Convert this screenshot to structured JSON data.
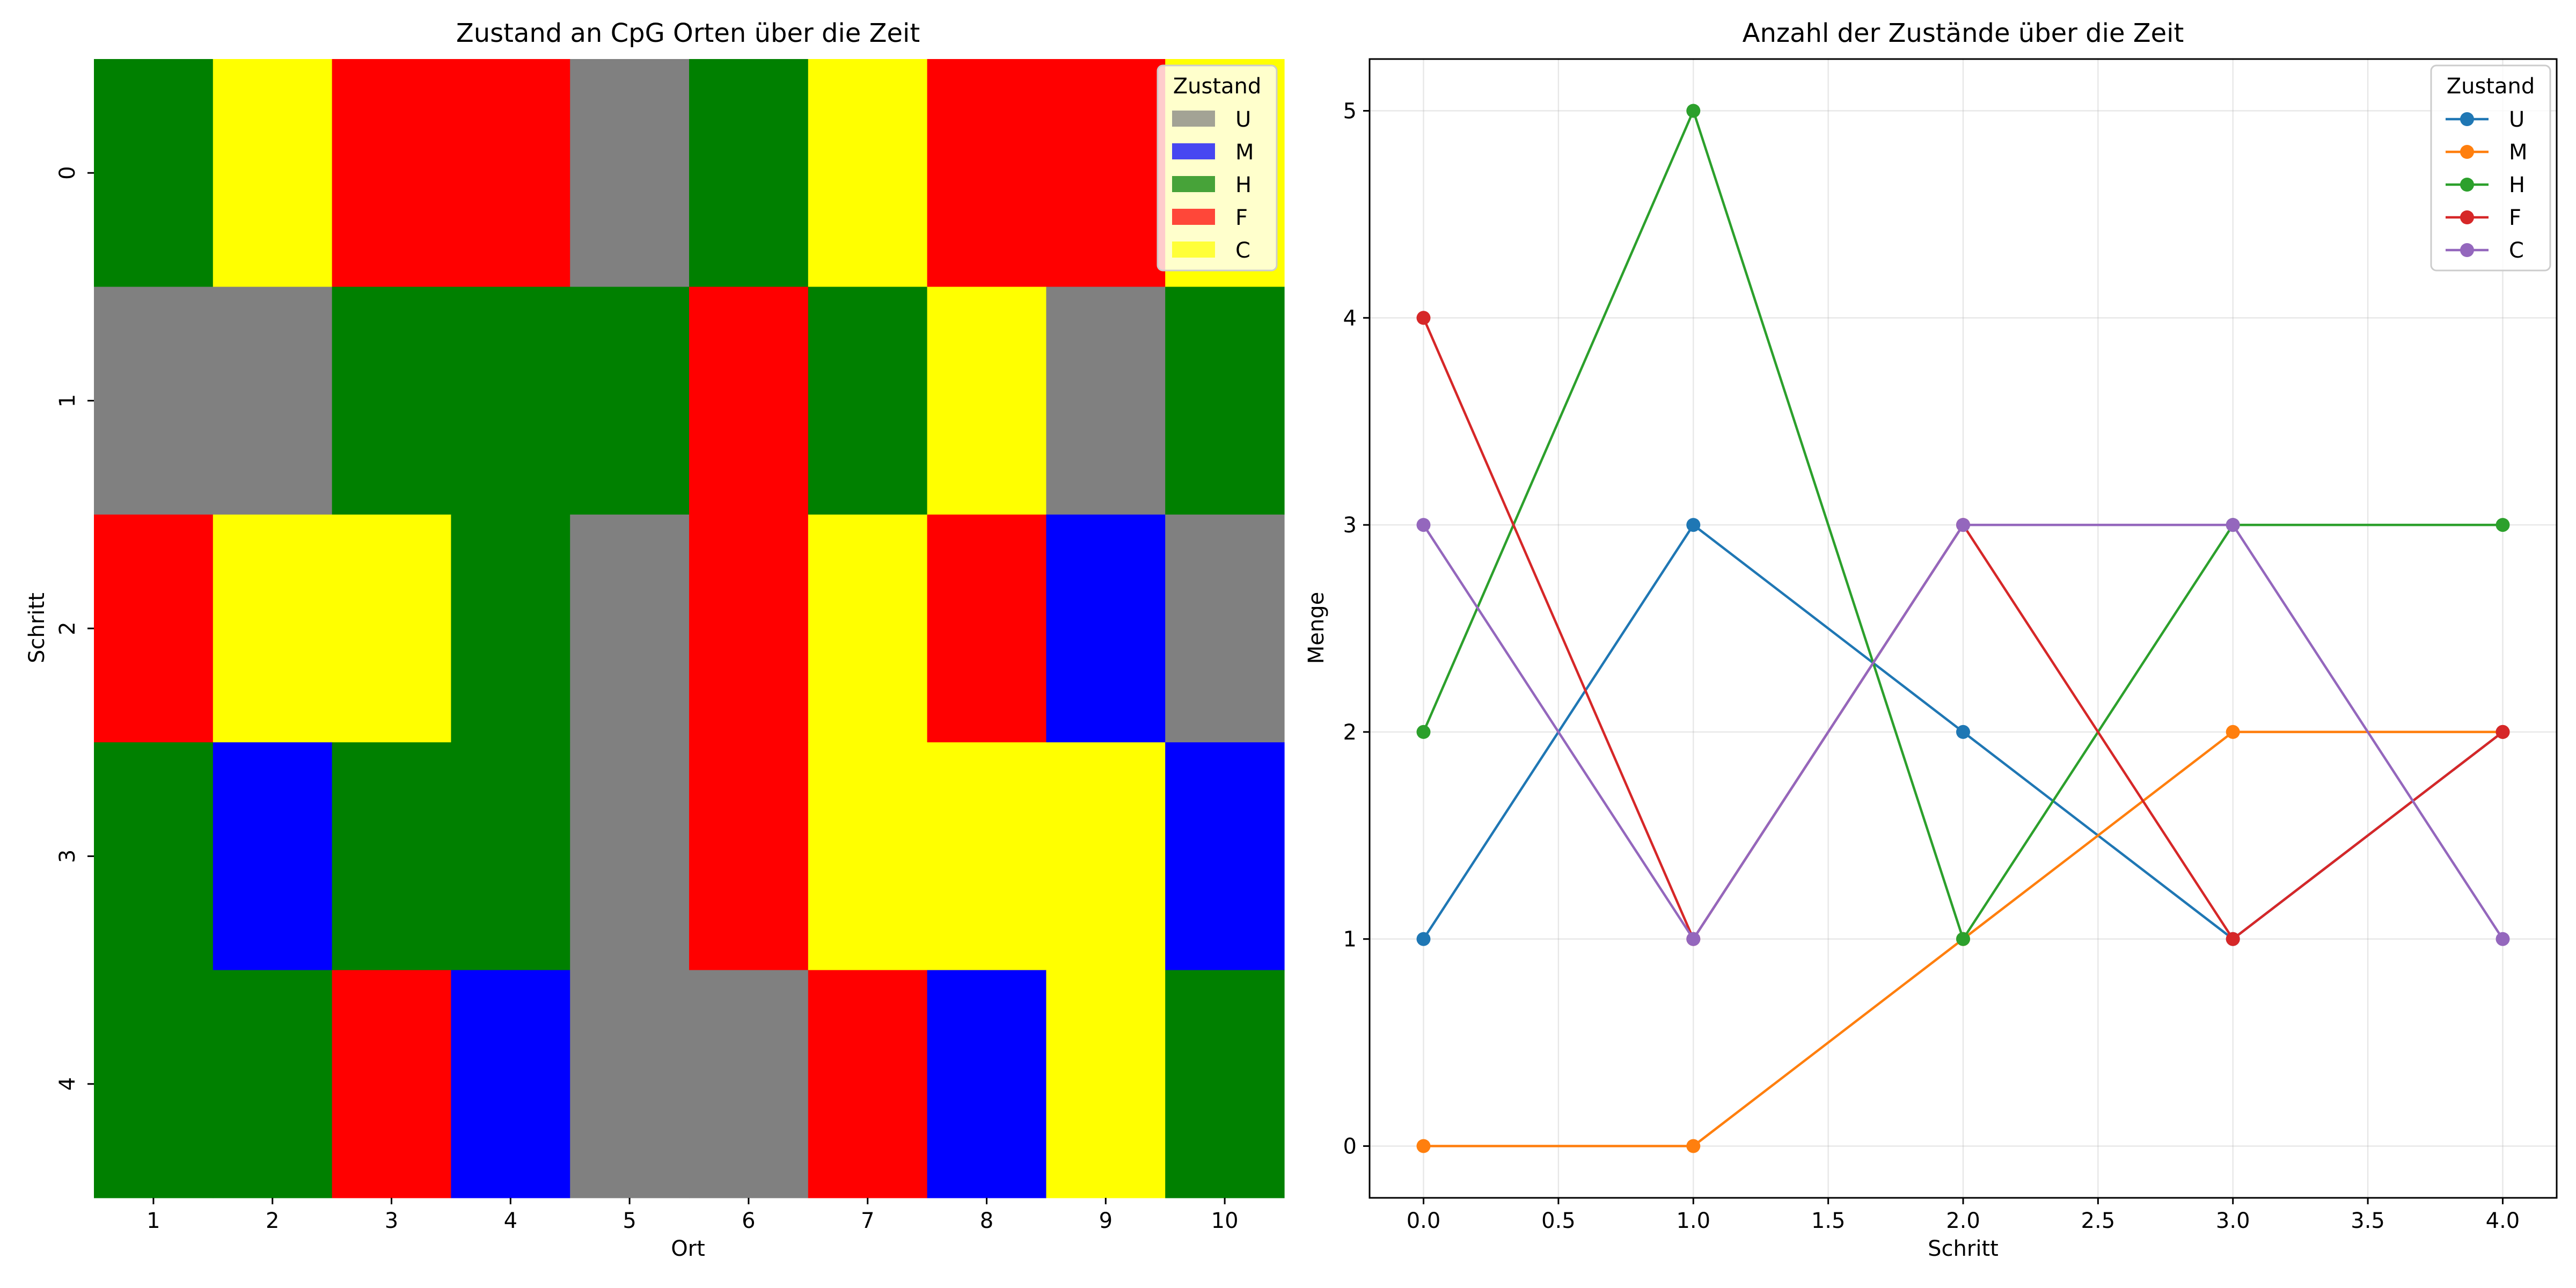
{
  "chart_data": [
    {
      "type": "heatmap",
      "title": "Zustand an CpG Orten über die Zeit",
      "xlabel": "Ort",
      "ylabel": "Schritt",
      "x_categories": [
        "1",
        "2",
        "3",
        "4",
        "5",
        "6",
        "7",
        "8",
        "9",
        "10"
      ],
      "y_categories": [
        "0",
        "1",
        "2",
        "3",
        "4"
      ],
      "grid": false,
      "legend": {
        "title": "Zustand",
        "placement": "top-right",
        "entries": [
          {
            "label": "U",
            "color": "#808080"
          },
          {
            "label": "M",
            "color": "#0000ff"
          },
          {
            "label": "H",
            "color": "#008000"
          },
          {
            "label": "F",
            "color": "#ff0000"
          },
          {
            "label": "C",
            "color": "#ffff00"
          }
        ]
      },
      "state_colors": {
        "U": "#808080",
        "M": "#0000ff",
        "H": "#008000",
        "F": "#ff0000",
        "C": "#ffff00"
      },
      "cells": [
        [
          "H",
          "C",
          "F",
          "F",
          "U",
          "H",
          "C",
          "F",
          "F",
          "C"
        ],
        [
          "U",
          "U",
          "H",
          "H",
          "H",
          "F",
          "H",
          "C",
          "U",
          "H"
        ],
        [
          "F",
          "C",
          "C",
          "H",
          "U",
          "F",
          "C",
          "F",
          "M",
          "U"
        ],
        [
          "H",
          "M",
          "H",
          "H",
          "U",
          "F",
          "C",
          "C",
          "C",
          "M"
        ],
        [
          "H",
          "H",
          "F",
          "M",
          "U",
          "U",
          "F",
          "M",
          "C",
          "H"
        ]
      ]
    },
    {
      "type": "line",
      "title": "Anzahl der Zustände über die Zeit",
      "xlabel": "Schritt",
      "ylabel": "Menge",
      "x": [
        0,
        1,
        2,
        3,
        4
      ],
      "xlim": [
        -0.2,
        4.2
      ],
      "ylim": [
        -0.25,
        5.25
      ],
      "xticks": [
        "0.0",
        "0.5",
        "1.0",
        "1.5",
        "2.0",
        "2.5",
        "3.0",
        "3.5",
        "4.0"
      ],
      "xtick_values": [
        0,
        0.5,
        1,
        1.5,
        2,
        2.5,
        3,
        3.5,
        4
      ],
      "yticks": [
        "0",
        "1",
        "2",
        "3",
        "4",
        "5"
      ],
      "ytick_values": [
        0,
        1,
        2,
        3,
        4,
        5
      ],
      "grid": true,
      "legend": {
        "title": "Zustand",
        "placement": "top-right"
      },
      "series": [
        {
          "name": "U",
          "color": "#1f77b4",
          "values": [
            1,
            3,
            2,
            1,
            2
          ]
        },
        {
          "name": "M",
          "color": "#ff7f0e",
          "values": [
            0,
            0,
            1,
            2,
            2
          ]
        },
        {
          "name": "H",
          "color": "#2ca02c",
          "values": [
            2,
            5,
            1,
            3,
            3
          ]
        },
        {
          "name": "F",
          "color": "#d62728",
          "values": [
            4,
            1,
            3,
            1,
            2
          ]
        },
        {
          "name": "C",
          "color": "#9467bd",
          "values": [
            3,
            1,
            3,
            3,
            1
          ]
        }
      ]
    }
  ]
}
